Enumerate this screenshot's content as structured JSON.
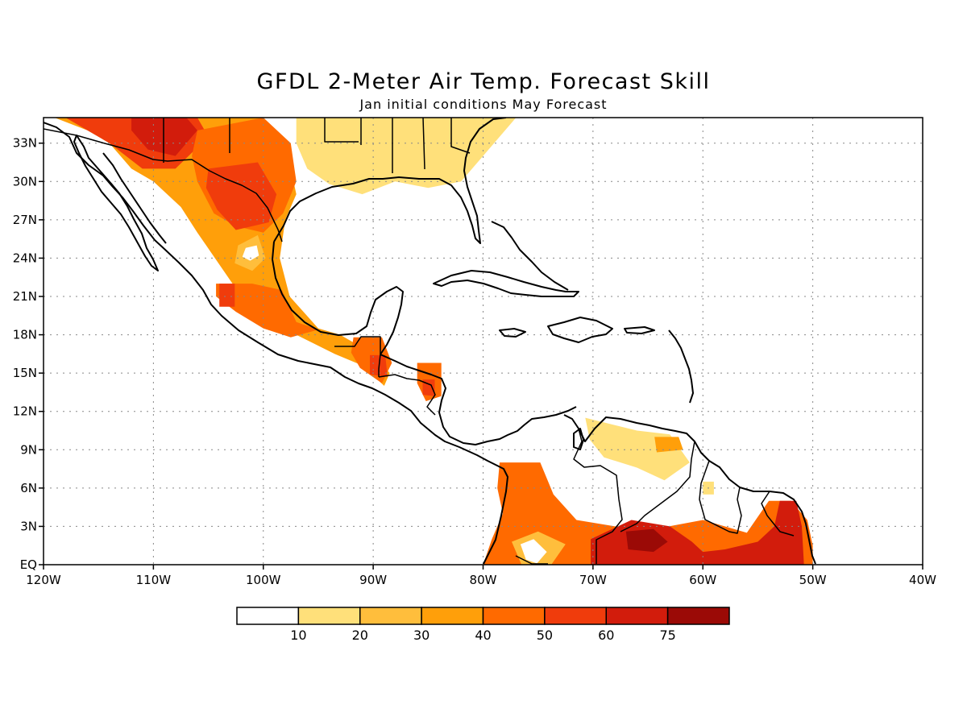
{
  "title": "GFDL 2-Meter Air Temp. Forecast Skill",
  "subtitle": "Jan initial conditions  May Forecast",
  "map": {
    "lon_range": [
      -120,
      -40
    ],
    "lat_range": [
      0,
      35
    ],
    "lon_ticks": [
      {
        "value": -120,
        "label": "120W"
      },
      {
        "value": -110,
        "label": "110W"
      },
      {
        "value": -100,
        "label": "100W"
      },
      {
        "value": -90,
        "label": "90W"
      },
      {
        "value": -80,
        "label": "80W"
      },
      {
        "value": -70,
        "label": "70W"
      },
      {
        "value": -60,
        "label": "60W"
      },
      {
        "value": -50,
        "label": "50W"
      },
      {
        "value": -40,
        "label": "40W"
      }
    ],
    "lat_ticks": [
      {
        "value": 0,
        "label": "EQ"
      },
      {
        "value": 3,
        "label": "3N"
      },
      {
        "value": 6,
        "label": "6N"
      },
      {
        "value": 9,
        "label": "9N"
      },
      {
        "value": 12,
        "label": "12N"
      },
      {
        "value": 15,
        "label": "15N"
      },
      {
        "value": 18,
        "label": "18N"
      },
      {
        "value": 21,
        "label": "21N"
      },
      {
        "value": 24,
        "label": "24N"
      },
      {
        "value": 27,
        "label": "27N"
      },
      {
        "value": 30,
        "label": "30N"
      },
      {
        "value": 33,
        "label": "33N"
      }
    ],
    "gridlines": true
  },
  "legend": {
    "labels": [
      "10",
      "20",
      "30",
      "40",
      "50",
      "60",
      "75"
    ],
    "colors": [
      "#ffffff",
      "#ffe07a",
      "#ffbe3c",
      "#ff9f0a",
      "#ff6a00",
      "#f03c0c",
      "#d21c0c",
      "#9b0a06"
    ]
  },
  "skill_regions": [
    {
      "level": 3,
      "points": [
        [
          -120,
          35
        ],
        [
          -100,
          35
        ],
        [
          -98,
          33
        ],
        [
          -97,
          29
        ],
        [
          -98,
          27
        ],
        [
          -98.5,
          24
        ],
        [
          -97.6,
          21
        ],
        [
          -95,
          18.5
        ],
        [
          -93,
          18
        ],
        [
          -90,
          16.5
        ],
        [
          -88.5,
          15
        ],
        [
          -89,
          14
        ],
        [
          -91,
          15.6
        ],
        [
          -93.5,
          16.5
        ],
        [
          -97,
          18
        ],
        [
          -99.5,
          19.5
        ],
        [
          -102,
          21
        ],
        [
          -104,
          23.5
        ],
        [
          -106,
          26
        ],
        [
          -107.5,
          28
        ],
        [
          -110,
          30
        ],
        [
          -112,
          31
        ],
        [
          -114,
          33
        ],
        [
          -116,
          34
        ],
        [
          -119,
          35
        ]
      ]
    },
    {
      "level": 1,
      "points": [
        [
          -97,
          35
        ],
        [
          -77,
          35
        ],
        [
          -79,
          33
        ],
        [
          -81,
          31
        ],
        [
          -82,
          30
        ],
        [
          -85,
          29.5
        ],
        [
          -88,
          30
        ],
        [
          -91,
          29
        ],
        [
          -94,
          29.8
        ],
        [
          -96,
          31
        ],
        [
          -97,
          33
        ]
      ]
    },
    {
      "level": 5,
      "points": [
        [
          -118,
          35
        ],
        [
          -106,
          35
        ],
        [
          -105,
          33.5
        ],
        [
          -108,
          31
        ],
        [
          -111,
          31
        ],
        [
          -114,
          33
        ],
        [
          -117,
          34.5
        ]
      ]
    },
    {
      "level": 6,
      "points": [
        [
          -112,
          35
        ],
        [
          -107,
          35
        ],
        [
          -106,
          34
        ],
        [
          -108,
          32
        ],
        [
          -110.5,
          32.5
        ],
        [
          -112,
          34
        ]
      ]
    },
    {
      "level": 4,
      "points": [
        [
          -106,
          34
        ],
        [
          -100,
          35
        ],
        [
          -97.5,
          33
        ],
        [
          -97,
          30
        ],
        [
          -98.2,
          27.5
        ],
        [
          -100,
          26
        ],
        [
          -102.5,
          26.5
        ],
        [
          -104.5,
          27.5
        ],
        [
          -106,
          30
        ],
        [
          -106.5,
          32
        ]
      ]
    },
    {
      "level": 5,
      "points": [
        [
          -105,
          31
        ],
        [
          -100.5,
          31.5
        ],
        [
          -98.8,
          29
        ],
        [
          -99.5,
          26.8
        ],
        [
          -102.5,
          26.2
        ],
        [
          -104.2,
          27.8
        ],
        [
          -105.2,
          29.5
        ]
      ]
    },
    {
      "level": 2,
      "points": [
        [
          -102.3,
          25
        ],
        [
          -100.5,
          25.8
        ],
        [
          -99.8,
          24
        ],
        [
          -101,
          23
        ],
        [
          -102.6,
          23.6
        ]
      ]
    },
    {
      "level": 0,
      "points": [
        [
          -101.6,
          24.8
        ],
        [
          -100.6,
          25
        ],
        [
          -100.4,
          24.2
        ],
        [
          -101.2,
          23.8
        ],
        [
          -101.9,
          24.1
        ]
      ]
    },
    {
      "level": 4,
      "points": [
        [
          -104.3,
          22
        ],
        [
          -101,
          22
        ],
        [
          -98.3,
          21.5
        ],
        [
          -97,
          19
        ],
        [
          -95,
          18.4
        ],
        [
          -97.5,
          17.8
        ],
        [
          -100,
          18.5
        ],
        [
          -102.5,
          19.8
        ],
        [
          -104.3,
          21
        ]
      ]
    },
    {
      "level": 5,
      "points": [
        [
          -104,
          22
        ],
        [
          -102.6,
          22
        ],
        [
          -102.6,
          20.2
        ],
        [
          -104,
          20.2
        ]
      ]
    },
    {
      "level": 4,
      "points": [
        [
          -91.8,
          17.8
        ],
        [
          -89.2,
          17.8
        ],
        [
          -88.3,
          15.8
        ],
        [
          -89.2,
          14.2
        ],
        [
          -91.2,
          15.4
        ],
        [
          -92,
          16.6
        ]
      ]
    },
    {
      "level": 5,
      "points": [
        [
          -90.3,
          16.4
        ],
        [
          -88.9,
          16.4
        ],
        [
          -88.7,
          14.7
        ],
        [
          -90.3,
          14.9
        ]
      ]
    },
    {
      "level": 4,
      "points": [
        [
          -86,
          15.8
        ],
        [
          -83.8,
          15.8
        ],
        [
          -83.8,
          13.2
        ],
        [
          -85.2,
          12.8
        ],
        [
          -86,
          14.2
        ]
      ]
    },
    {
      "level": 5,
      "points": [
        [
          -85.5,
          14.5
        ],
        [
          -84.4,
          14.5
        ],
        [
          -84.4,
          13.2
        ],
        [
          -85.5,
          13.3
        ]
      ]
    },
    {
      "level": 4,
      "points": [
        [
          -78.5,
          8
        ],
        [
          -74.8,
          8
        ],
        [
          -73.6,
          5.5
        ],
        [
          -71.5,
          3.5
        ],
        [
          -68,
          3
        ],
        [
          -65,
          2.7
        ],
        [
          -60,
          3.5
        ],
        [
          -56,
          2.5
        ],
        [
          -54,
          5
        ],
        [
          -52,
          5
        ],
        [
          -50.5,
          3.5
        ],
        [
          -50,
          1.5
        ],
        [
          -50,
          0
        ],
        [
          -80,
          0
        ],
        [
          -79.2,
          2
        ],
        [
          -78.2,
          4
        ],
        [
          -78.7,
          6
        ]
      ]
    },
    {
      "level": 2,
      "points": [
        [
          -77.4,
          1.8
        ],
        [
          -75,
          2.6
        ],
        [
          -72.5,
          1.6
        ],
        [
          -73.8,
          0
        ],
        [
          -76.5,
          0
        ]
      ]
    },
    {
      "level": 0,
      "points": [
        [
          -76.6,
          1.6
        ],
        [
          -75.4,
          2
        ],
        [
          -74.2,
          1
        ],
        [
          -75.1,
          0.1
        ],
        [
          -76.1,
          0.4
        ]
      ]
    },
    {
      "level": 6,
      "points": [
        [
          -70.2,
          2
        ],
        [
          -66.5,
          3.5
        ],
        [
          -63,
          3
        ],
        [
          -61,
          1.8
        ],
        [
          -60,
          1
        ],
        [
          -58,
          1.2
        ],
        [
          -55,
          1.8
        ],
        [
          -53.5,
          3
        ],
        [
          -53,
          5
        ],
        [
          -51.5,
          5
        ],
        [
          -51,
          3
        ],
        [
          -50.8,
          0
        ],
        [
          -70.2,
          0
        ]
      ]
    },
    {
      "level": 7,
      "points": [
        [
          -67,
          2.6
        ],
        [
          -64.5,
          2.8
        ],
        [
          -63.2,
          1.8
        ],
        [
          -64.5,
          1
        ],
        [
          -66.8,
          1.2
        ]
      ]
    },
    {
      "level": 1,
      "points": [
        [
          -70.7,
          11.5
        ],
        [
          -66,
          10.5
        ],
        [
          -63,
          10.2
        ],
        [
          -61.2,
          8
        ],
        [
          -63.5,
          6.6
        ],
        [
          -66,
          7.6
        ],
        [
          -69,
          8.4
        ],
        [
          -70.3,
          9.8
        ]
      ]
    },
    {
      "level": 3,
      "points": [
        [
          -64.4,
          10
        ],
        [
          -62.2,
          10
        ],
        [
          -61.8,
          9
        ],
        [
          -64.2,
          8.8
        ]
      ]
    },
    {
      "level": 1,
      "points": [
        [
          -60,
          5.5
        ],
        [
          -59,
          5.5
        ],
        [
          -59,
          6.5
        ],
        [
          -60,
          6.5
        ]
      ]
    }
  ]
}
